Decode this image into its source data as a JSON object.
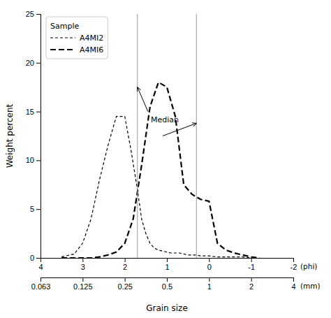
{
  "chart_data": {
    "type": "line",
    "x_label": "Grain size",
    "y_label": "Weight percent",
    "xlim": [
      4,
      -2
    ],
    "ylim": [
      0,
      25
    ],
    "xticks": [
      4,
      3,
      2,
      1,
      0,
      -1,
      -2
    ],
    "yticks": [
      0,
      5,
      10,
      15,
      20,
      25
    ],
    "x_tick_unit": "(phi)",
    "x2lim": [
      4,
      -2
    ],
    "x2ticks": [
      {
        "value": 4,
        "label": "0.063"
      },
      {
        "value": 3,
        "label": "0.125"
      },
      {
        "value": 2,
        "label": "0.25"
      },
      {
        "value": 1,
        "label": "0.5"
      },
      {
        "value": 0,
        "label": "1"
      },
      {
        "value": -1,
        "label": "2"
      },
      {
        "value": -2,
        "label": "4"
      }
    ],
    "x2_tick_unit": "(mm)",
    "grid": false,
    "legend": "upper left",
    "legend_title": "Sample",
    "series": [
      {
        "name": "A4MI2",
        "color": "#000000",
        "line_style": "dashed",
        "x": [
          3.5,
          3.2,
          3.0,
          2.8,
          2.6,
          2.4,
          2.2,
          2.0,
          1.85,
          1.7,
          1.6,
          1.5,
          1.4,
          1.3,
          1.2,
          1.1,
          1.0,
          0.9,
          0.8,
          0.7,
          0.6,
          0.5,
          0.4,
          0.3,
          0.2,
          0.1,
          0.0,
          -0.2,
          -0.5,
          -0.8,
          -1.0
        ],
        "values": [
          0.1,
          0.4,
          1.5,
          4.0,
          8.0,
          11.5,
          14.5,
          14.5,
          11.0,
          7.0,
          4.0,
          2.5,
          1.5,
          1.0,
          0.8,
          0.7,
          0.6,
          0.5,
          0.5,
          0.5,
          0.4,
          0.3,
          0.3,
          0.3,
          0.2,
          0.2,
          0.2,
          0.1,
          0.1,
          0.1,
          0.0
        ]
      },
      {
        "name": "A4MI6",
        "color": "#000000",
        "line_style": "long-dashed",
        "x": [
          3.5,
          3.2,
          3.0,
          2.8,
          2.6,
          2.4,
          2.2,
          2.0,
          1.8,
          1.6,
          1.4,
          1.2,
          1.0,
          0.8,
          0.6,
          0.4,
          0.2,
          0.0,
          -0.2,
          -0.4,
          -0.6,
          -0.8,
          -1.0,
          -1.2
        ],
        "values": [
          0.0,
          0.0,
          0.0,
          0.0,
          0.1,
          0.3,
          0.6,
          1.5,
          4.0,
          9.5,
          15.5,
          18.0,
          17.5,
          14.5,
          7.5,
          6.5,
          6.0,
          5.8,
          1.5,
          0.8,
          0.5,
          0.3,
          0.1,
          0.0
        ]
      }
    ],
    "reference_lines": [
      {
        "x": 1.7,
        "color": "#999999"
      },
      {
        "x": 0.3,
        "color": "#999999"
      }
    ],
    "annotations": [
      {
        "text": "Median",
        "x": 1.05,
        "y": 13.7,
        "color": "#000000",
        "arrows": [
          {
            "from": [
              1.45,
              15.0
            ],
            "to": [
              1.7,
              17.5
            ]
          },
          {
            "from": [
              1.1,
              12.5
            ],
            "to": [
              0.3,
              13.8
            ]
          }
        ]
      }
    ]
  }
}
